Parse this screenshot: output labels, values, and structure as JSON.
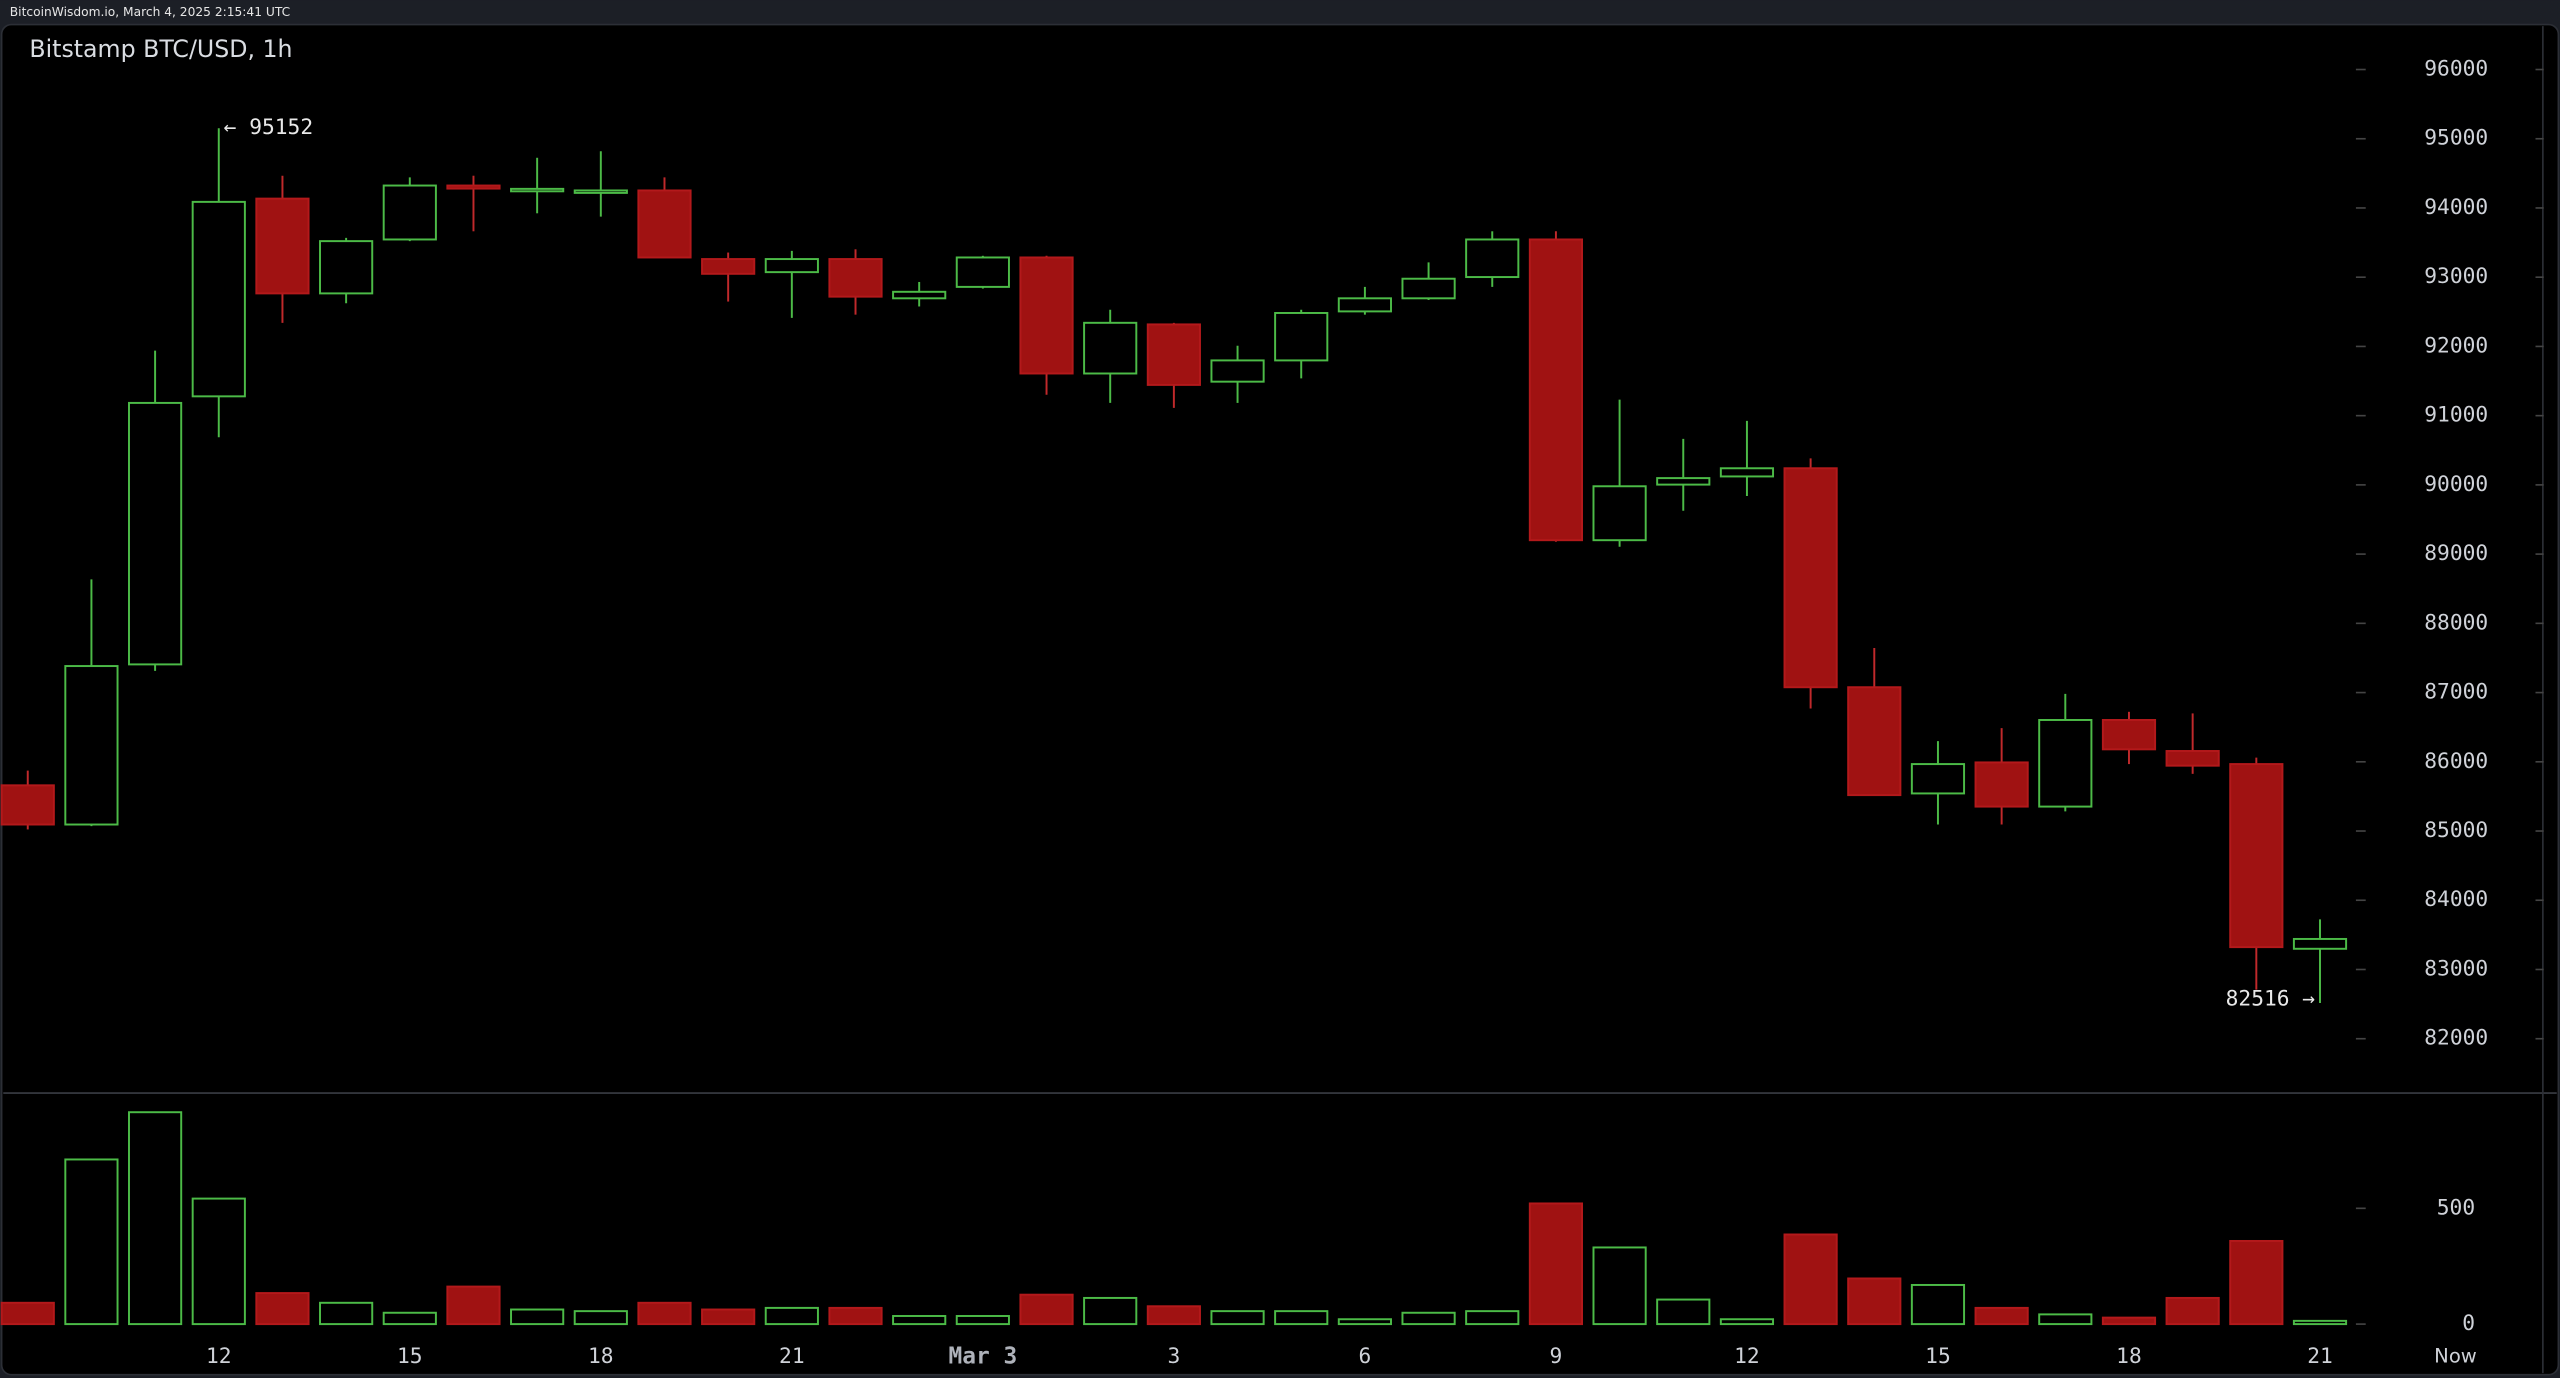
{
  "header": {
    "text": "BitcoinWisdom.io, March 4, 2025 2:15:41 UTC"
  },
  "chart_data": {
    "type": "candlestick",
    "title": "Bitstamp BTC/USD, 1h",
    "categories": [
      null,
      null,
      null,
      "12",
      null,
      null,
      "15",
      null,
      null,
      "18",
      null,
      null,
      "21",
      null,
      null,
      "Mar 3",
      null,
      null,
      "3",
      null,
      null,
      "6",
      null,
      null,
      "9",
      null,
      null,
      "12",
      null,
      null,
      "15",
      null,
      null,
      "18",
      null,
      null,
      "21"
    ],
    "x_end_label": "Now",
    "open": [
      85660,
      85094,
      87407,
      91279,
      94135,
      92766,
      93545,
      94324,
      94253,
      94230,
      94253,
      93262,
      93073,
      93262,
      92695,
      92860,
      93285,
      91609,
      92318,
      91491,
      91798,
      92506,
      92695,
      93002,
      93545,
      89201,
      90004,
      90122,
      90240,
      87077,
      85543,
      85991,
      85353,
      86604,
      86156,
      85967,
      83299
    ],
    "high": [
      85873,
      88635,
      91940,
      95152,
      94466,
      93568,
      94442,
      94466,
      94725,
      94820,
      94442,
      93356,
      93380,
      93403,
      92931,
      93309,
      93309,
      92530,
      92341,
      92010,
      92530,
      92860,
      93214,
      93663,
      93663,
      91231,
      90665,
      90924,
      90382,
      87643,
      86298,
      86486,
      86982,
      86722,
      86699,
      86061,
      83724
    ],
    "low": [
      85023,
      85070,
      87313,
      90688,
      92341,
      92624,
      93521,
      93663,
      93923,
      93875,
      93285,
      92648,
      92412,
      92459,
      92577,
      92836,
      91302,
      91184,
      91113,
      91184,
      91538,
      92459,
      92671,
      92860,
      89178,
      89107,
      89626,
      89839,
      86770,
      85519,
      85094,
      85094,
      85283,
      85967,
      85826,
      82709,
      82516
    ],
    "close": [
      85094,
      87383,
      91184,
      94088,
      92766,
      93521,
      94324,
      94280,
      94276,
      94253,
      93285,
      93049,
      93262,
      92719,
      92789,
      93285,
      91609,
      92341,
      91444,
      91798,
      92483,
      92695,
      92978,
      93545,
      89201,
      89980,
      90098,
      90240,
      87077,
      85519,
      85967,
      85353,
      86604,
      86180,
      85944,
      83323,
      83441
    ],
    "volume": [
      92,
      711,
      915,
      542,
      134,
      92,
      49,
      162,
      63,
      56,
      92,
      63,
      70,
      70,
      35,
      35,
      127,
      113,
      77,
      56,
      56,
      21,
      49,
      56,
      521,
      331,
      106,
      21,
      387,
      197,
      169,
      70,
      42,
      28,
      113,
      359,
      14
    ],
    "up_color": "#4cbb47",
    "down_color": "#a01212",
    "ylim": [
      81250,
      96650
    ],
    "yticks": [
      82000,
      83000,
      84000,
      85000,
      86000,
      87000,
      88000,
      89000,
      90000,
      91000,
      92000,
      93000,
      94000,
      95000,
      96000
    ],
    "y2lim": [
      0,
      980
    ],
    "y2ticks": [
      0,
      500
    ],
    "annotations": [
      {
        "text": "← 95152",
        "at": "high"
      },
      {
        "text": "82516 →",
        "at": "low"
      }
    ]
  }
}
